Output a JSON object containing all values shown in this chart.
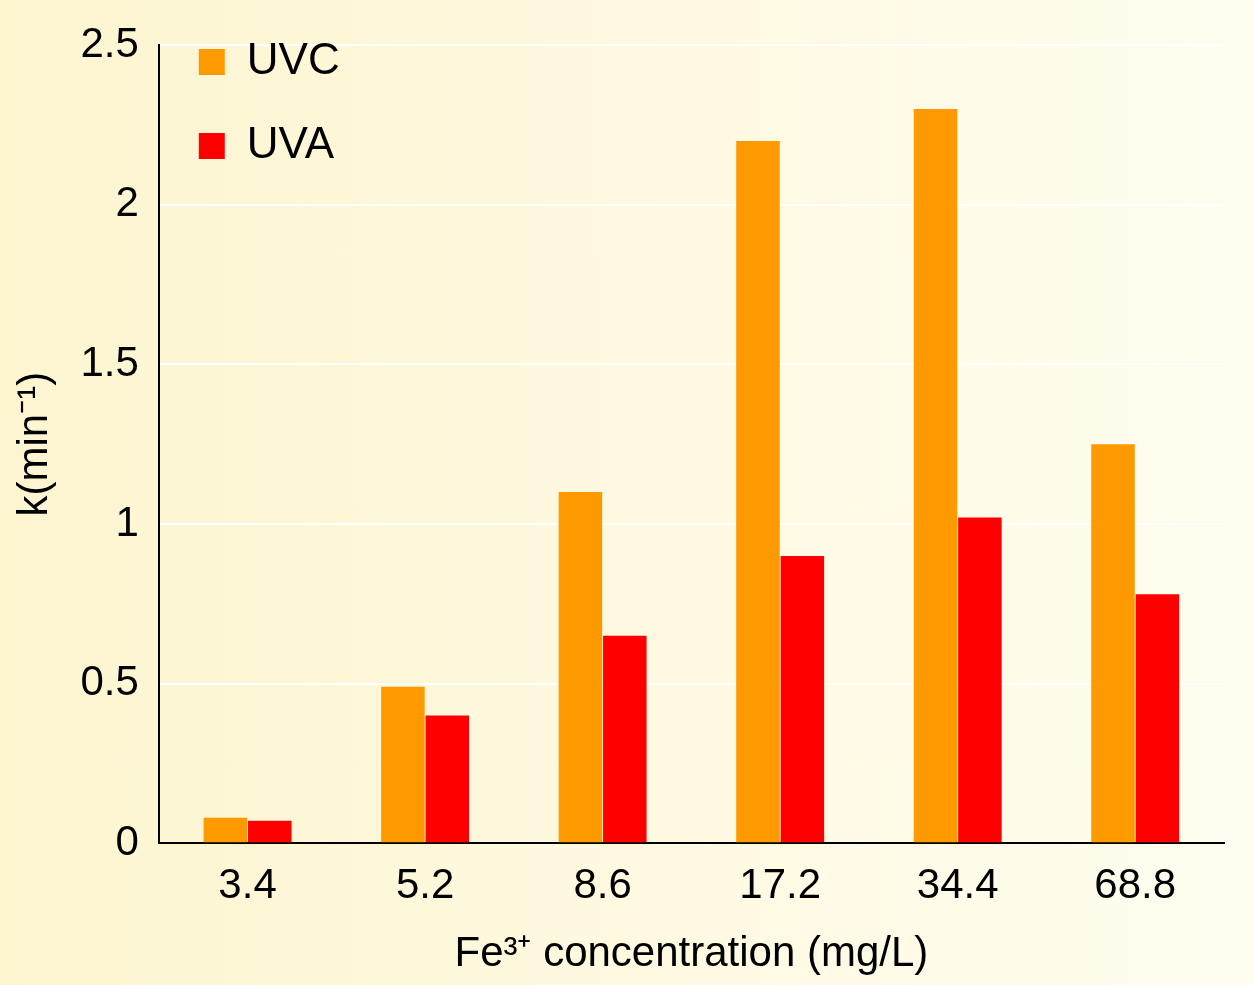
{
  "chart_data": {
    "type": "bar",
    "xlabel": "Fe³⁺ concentration (mg/L)",
    "ylabel": "k(min⁻¹)",
    "categories": [
      "3.4",
      "5.2",
      "8.6",
      "17.2",
      "34.4",
      "68.8"
    ],
    "series": [
      {
        "name": "UVC",
        "color": "#ff9900",
        "values": [
          0.08,
          0.49,
          1.1,
          2.2,
          2.3,
          1.25
        ]
      },
      {
        "name": "UVA",
        "color": "#ff0000",
        "values": [
          0.07,
          0.4,
          0.65,
          0.9,
          1.02,
          0.78
        ]
      }
    ],
    "ylim": [
      0,
      2.5
    ],
    "yticks": [
      0,
      0.5,
      1,
      1.5,
      2,
      2.5
    ],
    "grid": "y",
    "legend": "top left"
  }
}
